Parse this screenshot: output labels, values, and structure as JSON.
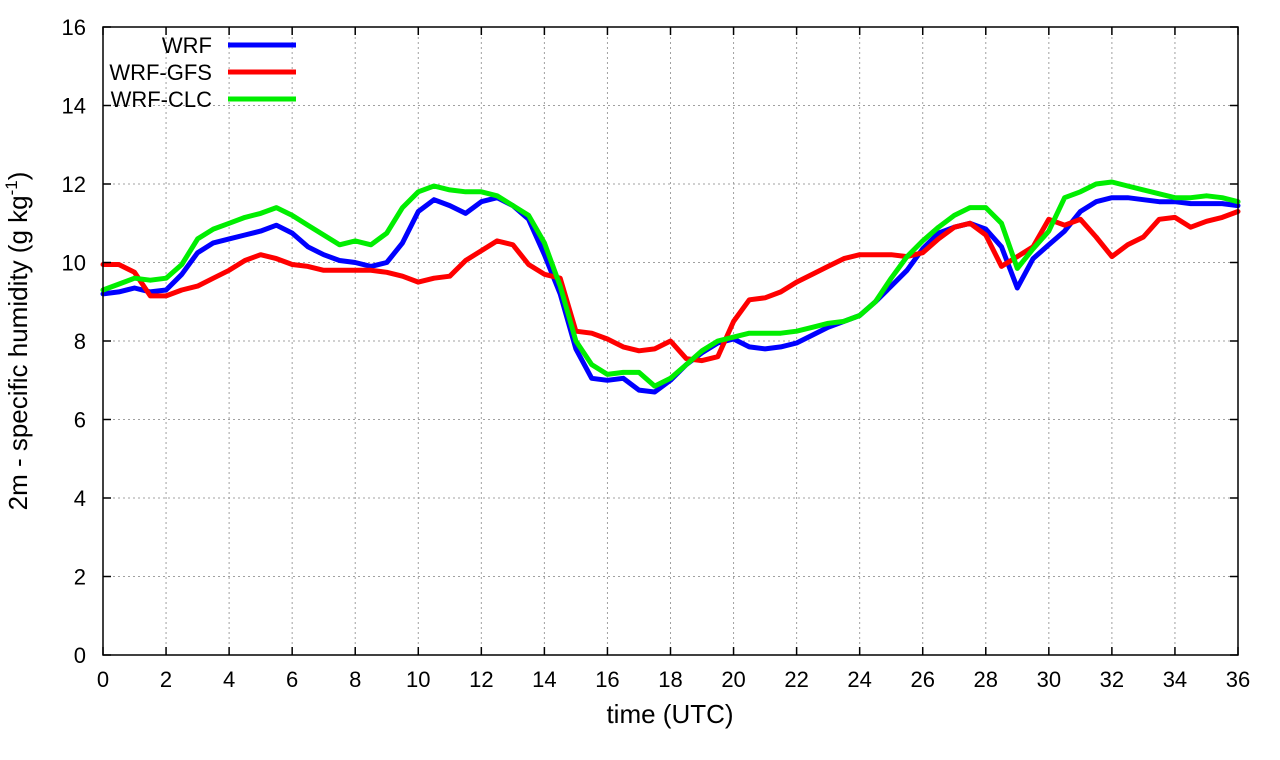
{
  "chart_data": {
    "type": "line",
    "title": "",
    "xlabel": "time (UTC)",
    "ylabel_main": "2m - specific humidity (g kg",
    "ylabel_sup": "-1",
    "ylabel_close": ")",
    "xlim": [
      0,
      36
    ],
    "ylim": [
      0,
      16
    ],
    "xticks": [
      0,
      2,
      4,
      6,
      8,
      10,
      12,
      14,
      16,
      18,
      20,
      22,
      24,
      26,
      28,
      30,
      32,
      34,
      36
    ],
    "yticks": [
      0,
      2,
      4,
      6,
      8,
      10,
      12,
      14,
      16
    ],
    "grid": true,
    "legend_position": "top-left",
    "series": [
      {
        "name": "WRF",
        "color": "#0000ff",
        "points": [
          [
            0,
            9.2
          ],
          [
            0.5,
            9.25
          ],
          [
            1,
            9.35
          ],
          [
            1.5,
            9.25
          ],
          [
            2,
            9.3
          ],
          [
            2.5,
            9.7
          ],
          [
            3,
            10.25
          ],
          [
            3.5,
            10.5
          ],
          [
            4,
            10.6
          ],
          [
            4.5,
            10.7
          ],
          [
            5,
            10.8
          ],
          [
            5.5,
            10.95
          ],
          [
            6,
            10.75
          ],
          [
            6.5,
            10.4
          ],
          [
            7,
            10.2
          ],
          [
            7.5,
            10.05
          ],
          [
            8,
            10.0
          ],
          [
            8.5,
            9.9
          ],
          [
            9,
            10.0
          ],
          [
            9.5,
            10.5
          ],
          [
            10,
            11.3
          ],
          [
            10.5,
            11.6
          ],
          [
            11,
            11.45
          ],
          [
            11.5,
            11.25
          ],
          [
            12,
            11.55
          ],
          [
            12.5,
            11.65
          ],
          [
            13,
            11.45
          ],
          [
            13.5,
            11.1
          ],
          [
            14,
            10.2
          ],
          [
            14.5,
            9.2
          ],
          [
            15,
            7.8
          ],
          [
            15.5,
            7.05
          ],
          [
            16,
            7.0
          ],
          [
            16.5,
            7.05
          ],
          [
            17,
            6.75
          ],
          [
            17.5,
            6.7
          ],
          [
            18,
            7.0
          ],
          [
            18.5,
            7.4
          ],
          [
            19,
            7.7
          ],
          [
            19.5,
            7.95
          ],
          [
            20,
            8.05
          ],
          [
            20.5,
            7.85
          ],
          [
            21,
            7.8
          ],
          [
            21.5,
            7.85
          ],
          [
            22,
            7.95
          ],
          [
            22.5,
            8.15
          ],
          [
            23,
            8.35
          ],
          [
            23.5,
            8.5
          ],
          [
            24,
            8.65
          ],
          [
            24.5,
            9.0
          ],
          [
            25,
            9.4
          ],
          [
            25.5,
            9.8
          ],
          [
            26,
            10.35
          ],
          [
            26.5,
            10.75
          ],
          [
            27,
            10.9
          ],
          [
            27.5,
            11.0
          ],
          [
            28,
            10.85
          ],
          [
            28.5,
            10.4
          ],
          [
            29,
            9.35
          ],
          [
            29.5,
            10.1
          ],
          [
            30,
            10.45
          ],
          [
            30.5,
            10.8
          ],
          [
            31,
            11.3
          ],
          [
            31.5,
            11.55
          ],
          [
            32,
            11.65
          ],
          [
            32.5,
            11.65
          ],
          [
            33,
            11.6
          ],
          [
            33.5,
            11.55
          ],
          [
            34,
            11.55
          ],
          [
            34.5,
            11.5
          ],
          [
            35,
            11.5
          ],
          [
            35.5,
            11.5
          ],
          [
            36,
            11.45
          ]
        ]
      },
      {
        "name": "WRF-GFS",
        "color": "#ff0000",
        "points": [
          [
            0,
            9.95
          ],
          [
            0.5,
            9.95
          ],
          [
            1,
            9.75
          ],
          [
            1.5,
            9.15
          ],
          [
            2,
            9.15
          ],
          [
            2.5,
            9.3
          ],
          [
            3,
            9.4
          ],
          [
            3.5,
            9.6
          ],
          [
            4,
            9.8
          ],
          [
            4.5,
            10.05
          ],
          [
            5,
            10.2
          ],
          [
            5.5,
            10.1
          ],
          [
            6,
            9.95
          ],
          [
            6.5,
            9.9
          ],
          [
            7,
            9.8
          ],
          [
            7.5,
            9.8
          ],
          [
            8,
            9.8
          ],
          [
            8.5,
            9.8
          ],
          [
            9,
            9.75
          ],
          [
            9.5,
            9.65
          ],
          [
            10,
            9.5
          ],
          [
            10.5,
            9.6
          ],
          [
            11,
            9.65
          ],
          [
            11.5,
            10.05
          ],
          [
            12,
            10.3
          ],
          [
            12.5,
            10.55
          ],
          [
            13,
            10.45
          ],
          [
            13.5,
            9.95
          ],
          [
            14,
            9.7
          ],
          [
            14.5,
            9.6
          ],
          [
            15,
            8.25
          ],
          [
            15.5,
            8.2
          ],
          [
            16,
            8.05
          ],
          [
            16.5,
            7.85
          ],
          [
            17,
            7.75
          ],
          [
            17.5,
            7.8
          ],
          [
            18,
            8.0
          ],
          [
            18.5,
            7.55
          ],
          [
            19,
            7.5
          ],
          [
            19.5,
            7.6
          ],
          [
            20,
            8.5
          ],
          [
            20.5,
            9.05
          ],
          [
            21,
            9.1
          ],
          [
            21.5,
            9.25
          ],
          [
            22,
            9.5
          ],
          [
            22.5,
            9.7
          ],
          [
            23,
            9.9
          ],
          [
            23.5,
            10.1
          ],
          [
            24,
            10.2
          ],
          [
            24.5,
            10.2
          ],
          [
            25,
            10.2
          ],
          [
            25.5,
            10.15
          ],
          [
            26,
            10.25
          ],
          [
            26.5,
            10.6
          ],
          [
            27,
            10.9
          ],
          [
            27.5,
            11.0
          ],
          [
            28,
            10.7
          ],
          [
            28.5,
            9.9
          ],
          [
            29,
            10.15
          ],
          [
            29.5,
            10.4
          ],
          [
            30,
            11.1
          ],
          [
            30.5,
            10.95
          ],
          [
            31,
            11.1
          ],
          [
            31.5,
            10.65
          ],
          [
            32,
            10.15
          ],
          [
            32.5,
            10.45
          ],
          [
            33,
            10.65
          ],
          [
            33.5,
            11.1
          ],
          [
            34,
            11.15
          ],
          [
            34.5,
            10.9
          ],
          [
            35,
            11.05
          ],
          [
            35.5,
            11.15
          ],
          [
            36,
            11.3
          ]
        ]
      },
      {
        "name": "WRF-CLC",
        "color": "#00ee00",
        "points": [
          [
            0,
            9.3
          ],
          [
            0.5,
            9.45
          ],
          [
            1,
            9.6
          ],
          [
            1.5,
            9.55
          ],
          [
            2,
            9.6
          ],
          [
            2.5,
            9.95
          ],
          [
            3,
            10.6
          ],
          [
            3.5,
            10.85
          ],
          [
            4,
            11.0
          ],
          [
            4.5,
            11.15
          ],
          [
            5,
            11.25
          ],
          [
            5.5,
            11.4
          ],
          [
            6,
            11.2
          ],
          [
            6.5,
            10.95
          ],
          [
            7,
            10.7
          ],
          [
            7.5,
            10.45
          ],
          [
            8,
            10.55
          ],
          [
            8.5,
            10.45
          ],
          [
            9,
            10.75
          ],
          [
            9.5,
            11.4
          ],
          [
            10,
            11.8
          ],
          [
            10.5,
            11.95
          ],
          [
            11,
            11.85
          ],
          [
            11.5,
            11.8
          ],
          [
            12,
            11.8
          ],
          [
            12.5,
            11.7
          ],
          [
            13,
            11.45
          ],
          [
            13.5,
            11.2
          ],
          [
            14,
            10.5
          ],
          [
            14.5,
            9.4
          ],
          [
            15,
            8.0
          ],
          [
            15.5,
            7.4
          ],
          [
            16,
            7.15
          ],
          [
            16.5,
            7.2
          ],
          [
            17,
            7.2
          ],
          [
            17.5,
            6.85
          ],
          [
            18,
            7.05
          ],
          [
            18.5,
            7.4
          ],
          [
            19,
            7.75
          ],
          [
            19.5,
            8.0
          ],
          [
            20,
            8.1
          ],
          [
            20.5,
            8.2
          ],
          [
            21,
            8.2
          ],
          [
            21.5,
            8.2
          ],
          [
            22,
            8.25
          ],
          [
            22.5,
            8.35
          ],
          [
            23,
            8.45
          ],
          [
            23.5,
            8.5
          ],
          [
            24,
            8.65
          ],
          [
            24.5,
            9.0
          ],
          [
            25,
            9.6
          ],
          [
            25.5,
            10.15
          ],
          [
            26,
            10.55
          ],
          [
            26.5,
            10.9
          ],
          [
            27,
            11.2
          ],
          [
            27.5,
            11.4
          ],
          [
            28,
            11.4
          ],
          [
            28.5,
            11.0
          ],
          [
            29,
            9.85
          ],
          [
            29.5,
            10.35
          ],
          [
            30,
            10.8
          ],
          [
            30.5,
            11.65
          ],
          [
            31,
            11.8
          ],
          [
            31.5,
            12.0
          ],
          [
            32,
            12.05
          ],
          [
            32.5,
            11.95
          ],
          [
            33,
            11.85
          ],
          [
            33.5,
            11.75
          ],
          [
            34,
            11.65
          ],
          [
            34.5,
            11.65
          ],
          [
            35,
            11.7
          ],
          [
            35.5,
            11.65
          ],
          [
            36,
            11.55
          ]
        ]
      }
    ]
  }
}
